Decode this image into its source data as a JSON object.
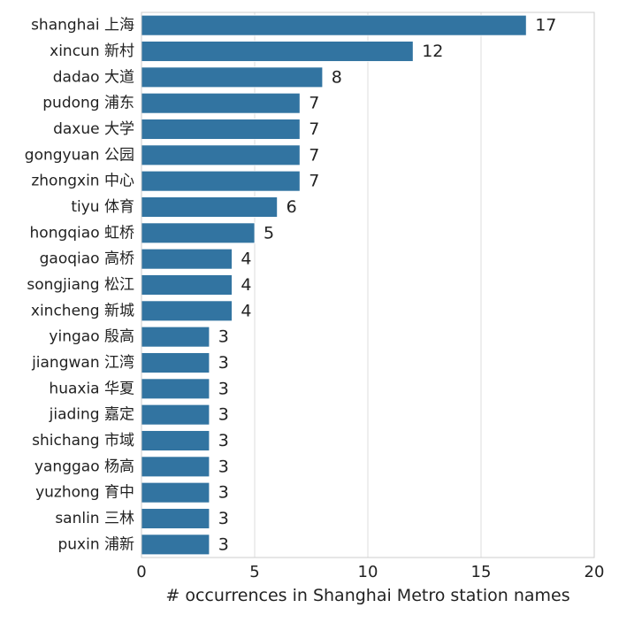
{
  "chart_data": {
    "type": "bar",
    "orientation": "horizontal",
    "categories": [
      "shanghai 上海",
      "xincun 新村",
      "dadao 大道",
      "pudong 浦东",
      "daxue 大学",
      "gongyuan 公园",
      "zhongxin 中心",
      "tiyu 体育",
      "hongqiao 虹桥",
      "gaoqiao 高桥",
      "songjiang 松江",
      "xincheng 新城",
      "yingao 殷高",
      "jiangwan 江湾",
      "huaxia 华夏",
      "jiading 嘉定",
      "shichang 市域",
      "yanggao 杨高",
      "yuzhong 育中",
      "sanlin 三林",
      "puxin 浦新"
    ],
    "values": [
      17,
      12,
      8,
      7,
      7,
      7,
      7,
      6,
      5,
      4,
      4,
      4,
      3,
      3,
      3,
      3,
      3,
      3,
      3,
      3,
      3
    ],
    "value_labels": [
      "17",
      "12",
      "8",
      "7",
      "7",
      "7",
      "7",
      "6",
      "5",
      "4",
      "4",
      "4",
      "3",
      "3",
      "3",
      "3",
      "3",
      "3",
      "3",
      "3",
      "3"
    ],
    "title": "",
    "xlabel": "# occurrences in Shanghai Metro station names",
    "ylabel": "",
    "xlim": [
      0,
      20
    ],
    "xticks": [
      0,
      5,
      10,
      15,
      20
    ],
    "xtick_labels": [
      "0",
      "5",
      "10",
      "15",
      "20"
    ],
    "grid": "vertical",
    "legend": "none",
    "bar_color": "#3274a1",
    "grid_color": "#dddddd",
    "frame_color": "#cccccc"
  }
}
